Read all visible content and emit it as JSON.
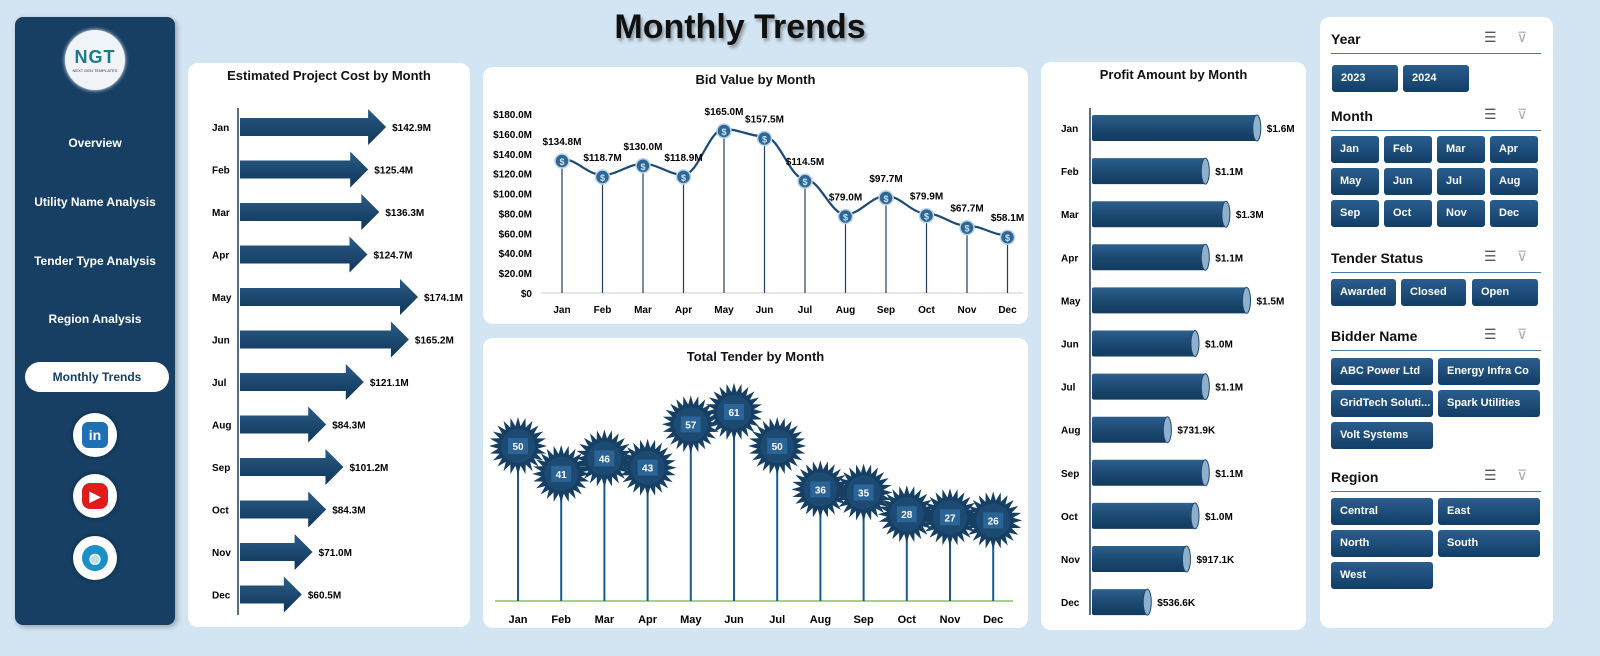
{
  "title": "Monthly Trends",
  "sidebar": {
    "logo_text": "NGT",
    "logo_sub": "NEXT GEN TEMPLATES",
    "items": [
      {
        "label": "Overview"
      },
      {
        "label": "Utility Name Analysis"
      },
      {
        "label": "Tender Type Analysis"
      },
      {
        "label": "Region Analysis"
      },
      {
        "label": "Monthly Trends",
        "active": true
      }
    ],
    "social": [
      "linkedin-icon",
      "youtube-icon",
      "globe-icon"
    ]
  },
  "chart_data": [
    {
      "type": "bar",
      "title": "Estimated Project Cost by Month",
      "categories": [
        "Jan",
        "Feb",
        "Mar",
        "Apr",
        "May",
        "Jun",
        "Jul",
        "Aug",
        "Sep",
        "Oct",
        "Nov",
        "Dec"
      ],
      "values": [
        142.9,
        125.4,
        136.3,
        124.7,
        174.1,
        165.2,
        121.1,
        84.3,
        101.2,
        84.3,
        71.0,
        60.5
      ],
      "labels": [
        "$142.9M",
        "$125.4M",
        "$136.3M",
        "$124.7M",
        "$174.1M",
        "$165.2M",
        "$121.1M",
        "$84.3M",
        "$101.2M",
        "$84.3M",
        "$71.0M",
        "$60.5M"
      ],
      "unit": "M",
      "orientation": "horizontal"
    },
    {
      "type": "line",
      "title": "Bid Value by Month",
      "categories": [
        "Jan",
        "Feb",
        "Mar",
        "Apr",
        "May",
        "Jun",
        "Jul",
        "Aug",
        "Sep",
        "Oct",
        "Nov",
        "Dec"
      ],
      "values": [
        134.8,
        118.7,
        130.0,
        118.9,
        165.0,
        157.5,
        114.5,
        79.0,
        97.7,
        79.9,
        67.7,
        58.1
      ],
      "labels": [
        "$134.8M",
        "$118.7M",
        "$130.0M",
        "$118.9M",
        "$165.0M",
        "$157.5M",
        "$114.5M",
        "$79.0M",
        "$97.7M",
        "$79.9M",
        "$67.7M",
        "$58.1M"
      ],
      "ylim": [
        0,
        180
      ],
      "yticks": [
        "$0",
        "$20.0M",
        "$40.0M",
        "$60.0M",
        "$80.0M",
        "$100.0M",
        "$120.0M",
        "$140.0M",
        "$160.0M",
        "$180.0M"
      ]
    },
    {
      "type": "scatter",
      "title": "Total Tender by Month",
      "categories": [
        "Jan",
        "Feb",
        "Mar",
        "Apr",
        "May",
        "Jun",
        "Jul",
        "Aug",
        "Sep",
        "Oct",
        "Nov",
        "Dec"
      ],
      "values": [
        50,
        41,
        46,
        43,
        57,
        61,
        50,
        36,
        35,
        28,
        27,
        26
      ]
    },
    {
      "type": "bar",
      "title": "Profit Amount by Month",
      "categories": [
        "Jan",
        "Feb",
        "Mar",
        "Apr",
        "May",
        "Jun",
        "Jul",
        "Aug",
        "Sep",
        "Oct",
        "Nov",
        "Dec"
      ],
      "values": [
        1.6,
        1.1,
        1.3,
        1.1,
        1.5,
        1.0,
        1.1,
        0.7319,
        1.1,
        1.0,
        0.9171,
        0.5366
      ],
      "labels": [
        "$1.6M",
        "$1.1M",
        "$1.3M",
        "$1.1M",
        "$1.5M",
        "$1.0M",
        "$1.1M",
        "$731.9K",
        "$1.1M",
        "$1.0M",
        "$917.1K",
        "$536.6K"
      ],
      "orientation": "horizontal"
    }
  ],
  "slicers": [
    {
      "title": "Year",
      "items": [
        "2023",
        "2024"
      ]
    },
    {
      "title": "Month",
      "items": [
        "Jan",
        "Feb",
        "Mar",
        "Apr",
        "May",
        "Jun",
        "Jul",
        "Aug",
        "Sep",
        "Oct",
        "Nov",
        "Dec"
      ]
    },
    {
      "title": "Tender Status",
      "items": [
        "Awarded",
        "Closed",
        "Open"
      ]
    },
    {
      "title": "Bidder Name",
      "items": [
        "ABC Power Ltd",
        "Energy Infra Co",
        "GridTech Soluti...",
        "Spark Utilities",
        "Volt Systems"
      ]
    },
    {
      "title": "Region",
      "items": [
        "Central",
        "East",
        "North",
        "South",
        "West"
      ]
    }
  ],
  "colors": {
    "navy": "#163f63",
    "bar": "#1c4a72",
    "bg": "#d3e5f3"
  }
}
